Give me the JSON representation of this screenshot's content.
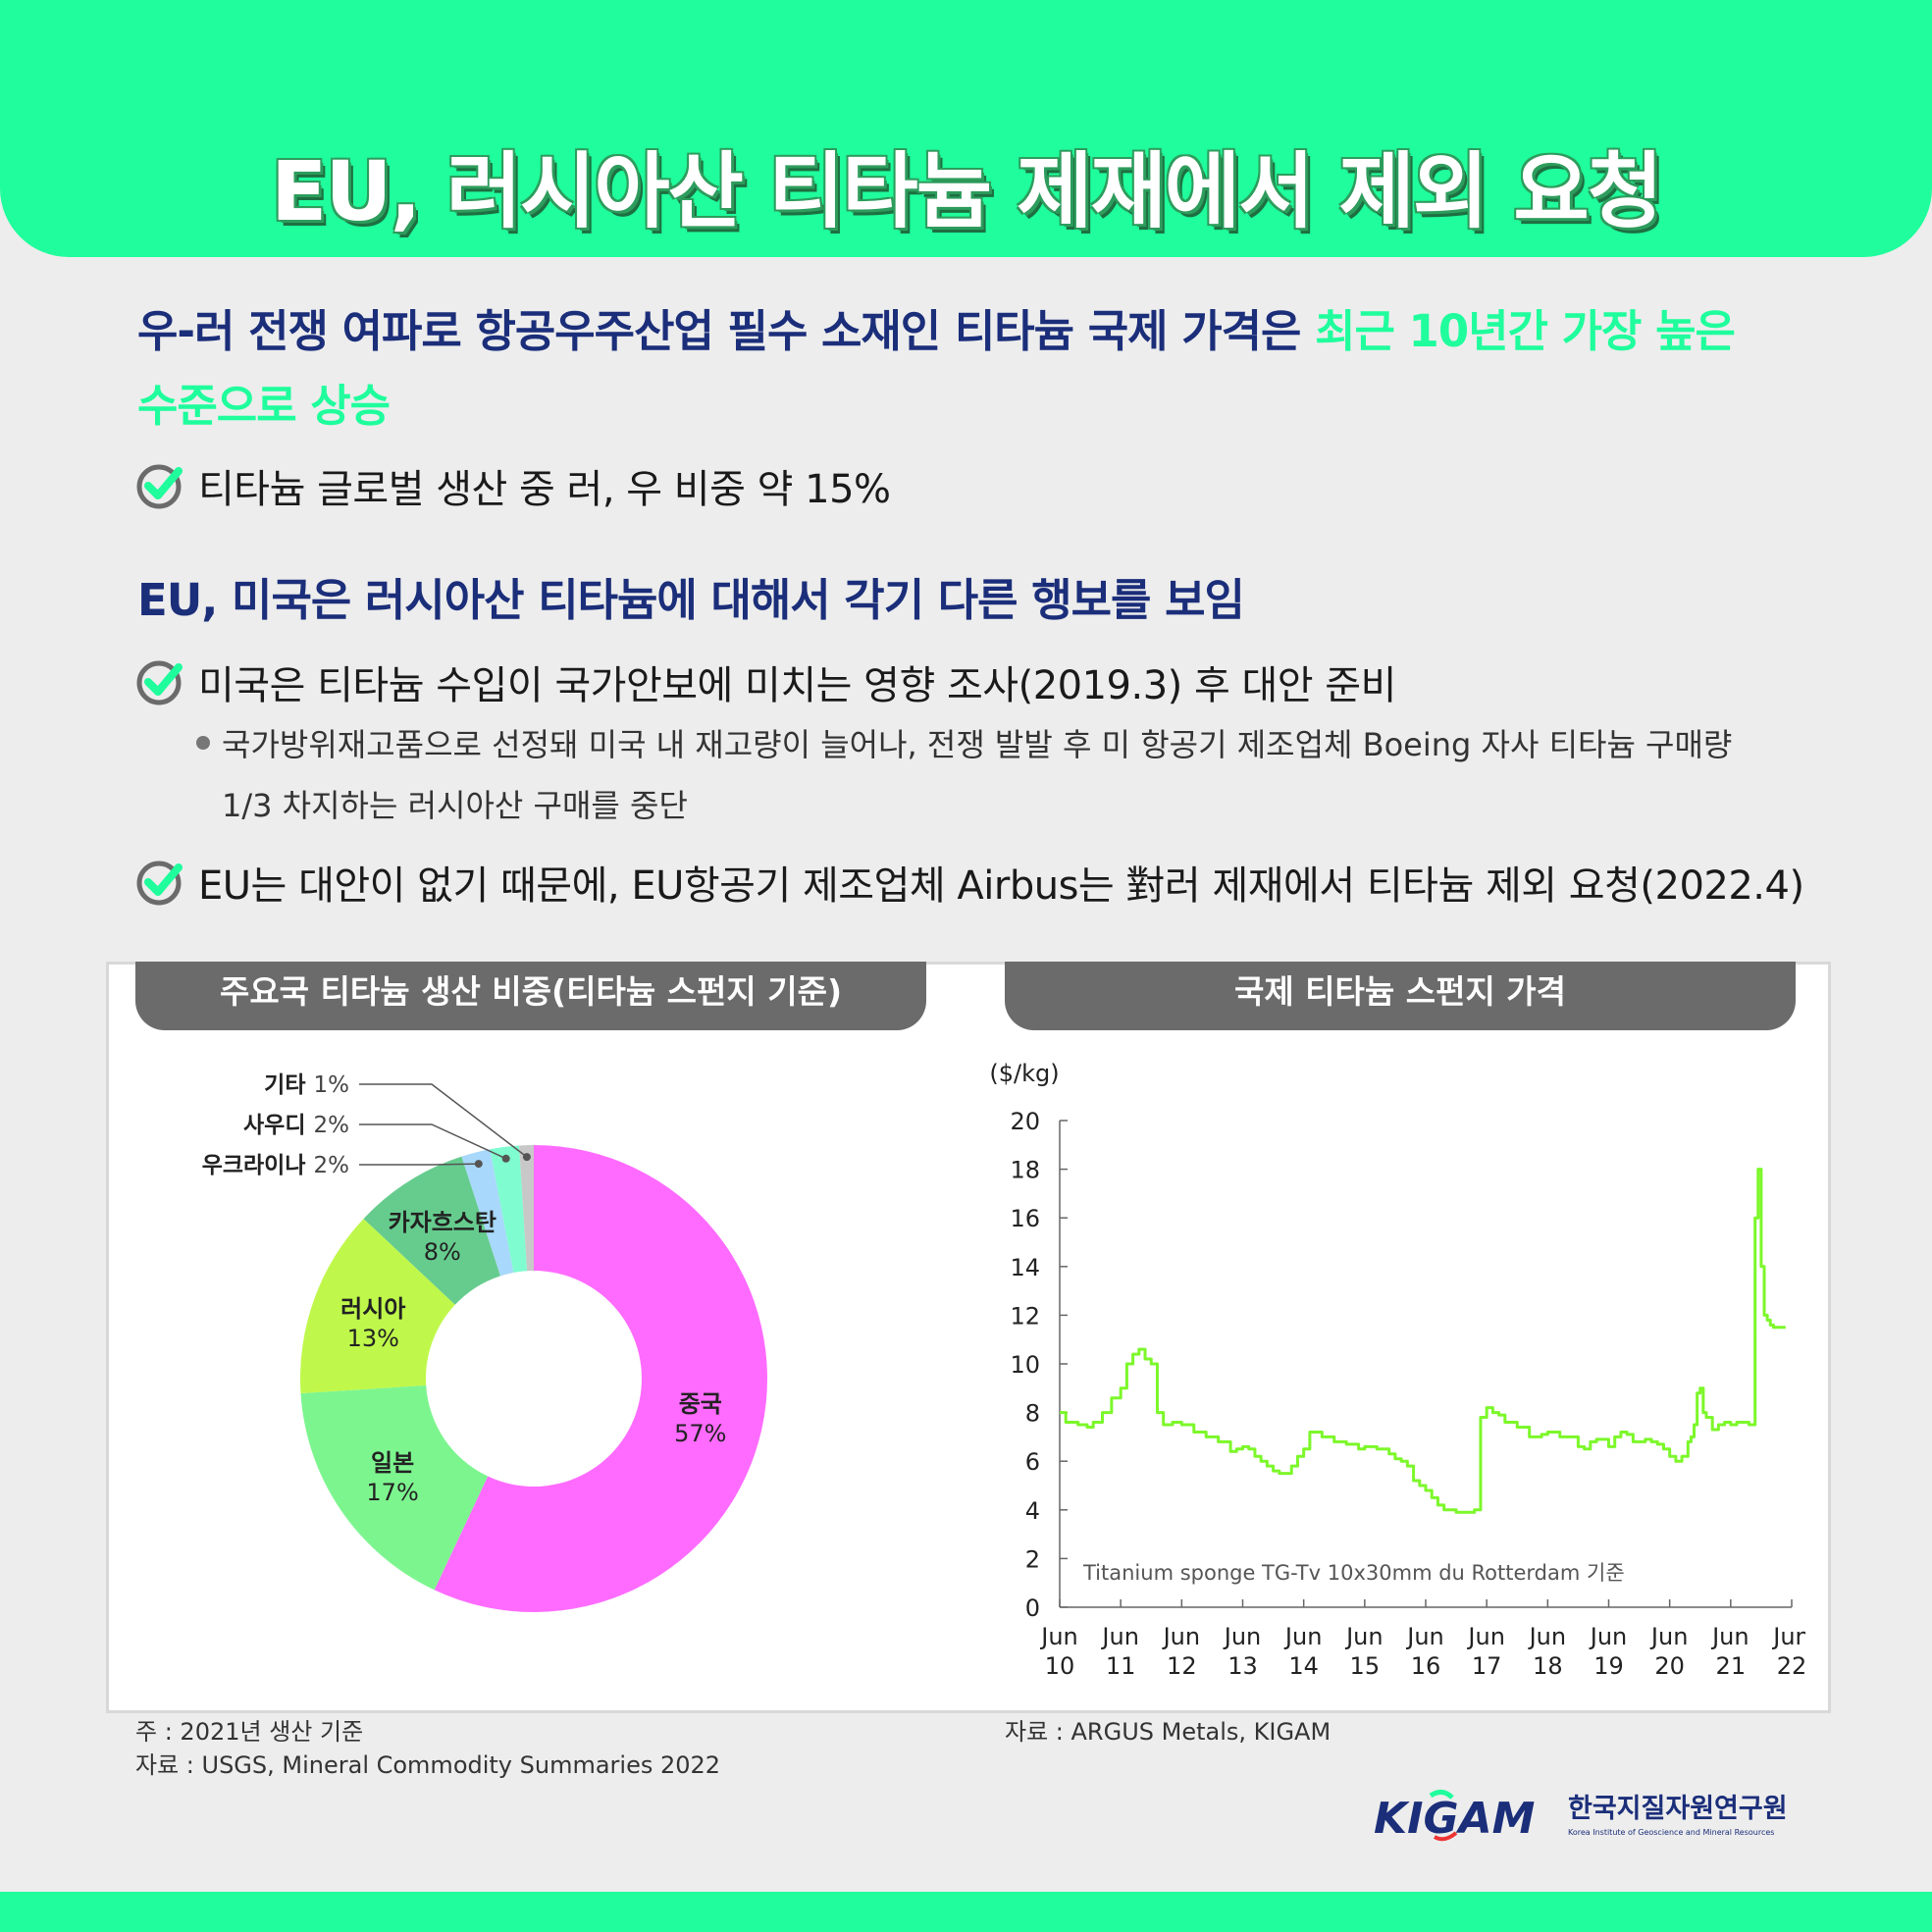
{
  "title": "EU, 러시아산 티타늄 제재에서 제외 요청",
  "section1": {
    "heading_part1": "우-러 전쟁 여파로 항공우주산업 필수 소재인 티타늄 국제 가격은 ",
    "heading_highlight_a": "최근 10년간 가장 높은",
    "heading_highlight_b": "수준으로 상승",
    "bullet1": "티타늄 글로벌 생산 중 러, 우 비중 약 15%"
  },
  "section2": {
    "heading": "EU, 미국은 러시아산 티타늄에 대해서 각기 다른 행보를 보임",
    "bullet1": "미국은 티타늄 수입이 국가안보에 미치는 영향 조사(2019.3) 후 대안 준비",
    "sub_line1": "국가방위재고품으로 선정돼 미국 내 재고량이 늘어나, 전쟁 발발 후 미 항공기 제조업체 Boeing 자사 티타늄 구매량",
    "sub_line2": "1/3 차지하는 러시아산 구매를 중단",
    "bullet2": "EU는 대안이 없기 때문에, EU항공기 제조업체 Airbus는 對러 제재에서 티타늄 제외 요청(2022.4)"
  },
  "colors": {
    "brand_green": "#1ffd9c",
    "heading_navy": "#1b2e7a",
    "line_green": "#7cf72a"
  },
  "chart_data": [
    {
      "type": "pie",
      "title": "주요국 티타늄 생산 비중(티타늄 스펀지 기준)",
      "slices": [
        {
          "label": "중국",
          "value": 57,
          "value_text": "57%",
          "color": "#ff6bff"
        },
        {
          "label": "일본",
          "value": 17,
          "value_text": "17%",
          "color": "#7df58f"
        },
        {
          "label": "러시아",
          "value": 13,
          "value_text": "13%",
          "color": "#bff84b"
        },
        {
          "label": "카자흐스탄",
          "value": 8,
          "value_text": "8%",
          "color": "#66cc8e"
        },
        {
          "label": "우크라이나",
          "value": 2,
          "value_text": "2%",
          "color": "#a8d8fb"
        },
        {
          "label": "사우디",
          "value": 2,
          "value_text": "2%",
          "color": "#7ffcd0"
        },
        {
          "label": "기타",
          "value": 1,
          "value_text": "1%",
          "color": "#c8c8c8"
        }
      ],
      "note": "주 : 2021년 생산 기준",
      "source": "자료 : USGS, Mineral Commodity Summaries 2022"
    },
    {
      "type": "line",
      "title": "국제 티타늄 스펀지 가격",
      "ylabel": "($/kg)",
      "ylim": [
        0,
        20
      ],
      "yticks": [
        0,
        2,
        4,
        6,
        8,
        10,
        12,
        14,
        16,
        18,
        20
      ],
      "x_ticks": [
        "Jun 10",
        "Jun 11",
        "Jun 12",
        "Jun 13",
        "Jun 14",
        "Jun 15",
        "Jun 16",
        "Jun 17",
        "Jun 18",
        "Jun 19",
        "Jun 20",
        "Jun 21",
        "Jun 22"
      ],
      "annotation": "Titanium sponge TG-Tv 10x30mm du Rotterdam 기준",
      "source": "자료 : ARGUS Metals, KIGAM",
      "series": [
        {
          "color": "#7cf72a",
          "x": [
            2010.0,
            2010.1,
            2010.2,
            2010.3,
            2010.45,
            2010.55,
            2010.7,
            2010.85,
            2011.0,
            2011.1,
            2011.2,
            2011.3,
            2011.4,
            2011.5,
            2011.6,
            2011.7,
            2011.85,
            2012.0,
            2012.2,
            2012.4,
            2012.6,
            2012.8,
            2012.9,
            2013.0,
            2013.1,
            2013.2,
            2013.3,
            2013.4,
            2013.5,
            2013.6,
            2013.7,
            2013.8,
            2013.9,
            2014.0,
            2014.1,
            2014.3,
            2014.5,
            2014.7,
            2014.9,
            2015.0,
            2015.2,
            2015.4,
            2015.5,
            2015.6,
            2015.7,
            2015.8,
            2015.9,
            2016.0,
            2016.1,
            2016.2,
            2016.3,
            2016.5,
            2016.6,
            2016.65,
            2016.7,
            2016.8,
            2016.9,
            2017.0,
            2017.1,
            2017.2,
            2017.3,
            2017.5,
            2017.7,
            2017.9,
            2018.0,
            2018.2,
            2018.4,
            2018.5,
            2018.6,
            2018.7,
            2018.8,
            2018.9,
            2019.0,
            2019.1,
            2019.2,
            2019.3,
            2019.4,
            2019.5,
            2019.6,
            2019.7,
            2019.8,
            2019.9,
            2020.0,
            2020.1,
            2020.2,
            2020.3,
            2020.35,
            2020.4,
            2020.45,
            2020.5,
            2020.55,
            2020.6,
            2020.7,
            2020.8,
            2020.9,
            2021.0,
            2021.1,
            2021.2,
            2021.3,
            2021.4,
            2021.45,
            2021.5,
            2021.55,
            2021.6,
            2021.65,
            2021.7,
            2021.8,
            2021.9
          ],
          "y": [
            8.0,
            7.6,
            7.6,
            7.5,
            7.4,
            7.6,
            8.0,
            8.6,
            9.0,
            10.0,
            10.4,
            10.6,
            10.2,
            10.0,
            8.0,
            7.5,
            7.6,
            7.5,
            7.2,
            7.0,
            6.8,
            6.4,
            6.5,
            6.6,
            6.5,
            6.2,
            6.0,
            5.8,
            5.6,
            5.5,
            5.5,
            5.8,
            6.2,
            6.5,
            7.2,
            7.0,
            6.8,
            6.7,
            6.5,
            6.6,
            6.5,
            6.3,
            6.1,
            6.0,
            5.8,
            5.2,
            5.0,
            4.8,
            4.5,
            4.2,
            4.0,
            3.9,
            3.9,
            3.9,
            3.9,
            4.0,
            7.8,
            8.2,
            8.0,
            7.9,
            7.6,
            7.4,
            7.0,
            7.1,
            7.2,
            7.0,
            7.0,
            6.6,
            6.5,
            6.8,
            6.9,
            6.9,
            6.6,
            7.0,
            7.2,
            7.1,
            6.8,
            6.8,
            6.9,
            6.8,
            6.7,
            6.5,
            6.2,
            6.0,
            6.2,
            6.8,
            7.0,
            7.5,
            8.8,
            9.0,
            8.0,
            7.8,
            7.3,
            7.5,
            7.6,
            7.5,
            7.6,
            7.6,
            7.5,
            16.0,
            18.0,
            14.0,
            12.0,
            11.8,
            11.6,
            11.5,
            11.5,
            11.5
          ]
        }
      ]
    }
  ],
  "logo": {
    "wordmark": "KIGAM",
    "org_korean": "한국지질자원연구원",
    "org_english": "Korea Institute of Geoscience and Mineral Resources"
  }
}
